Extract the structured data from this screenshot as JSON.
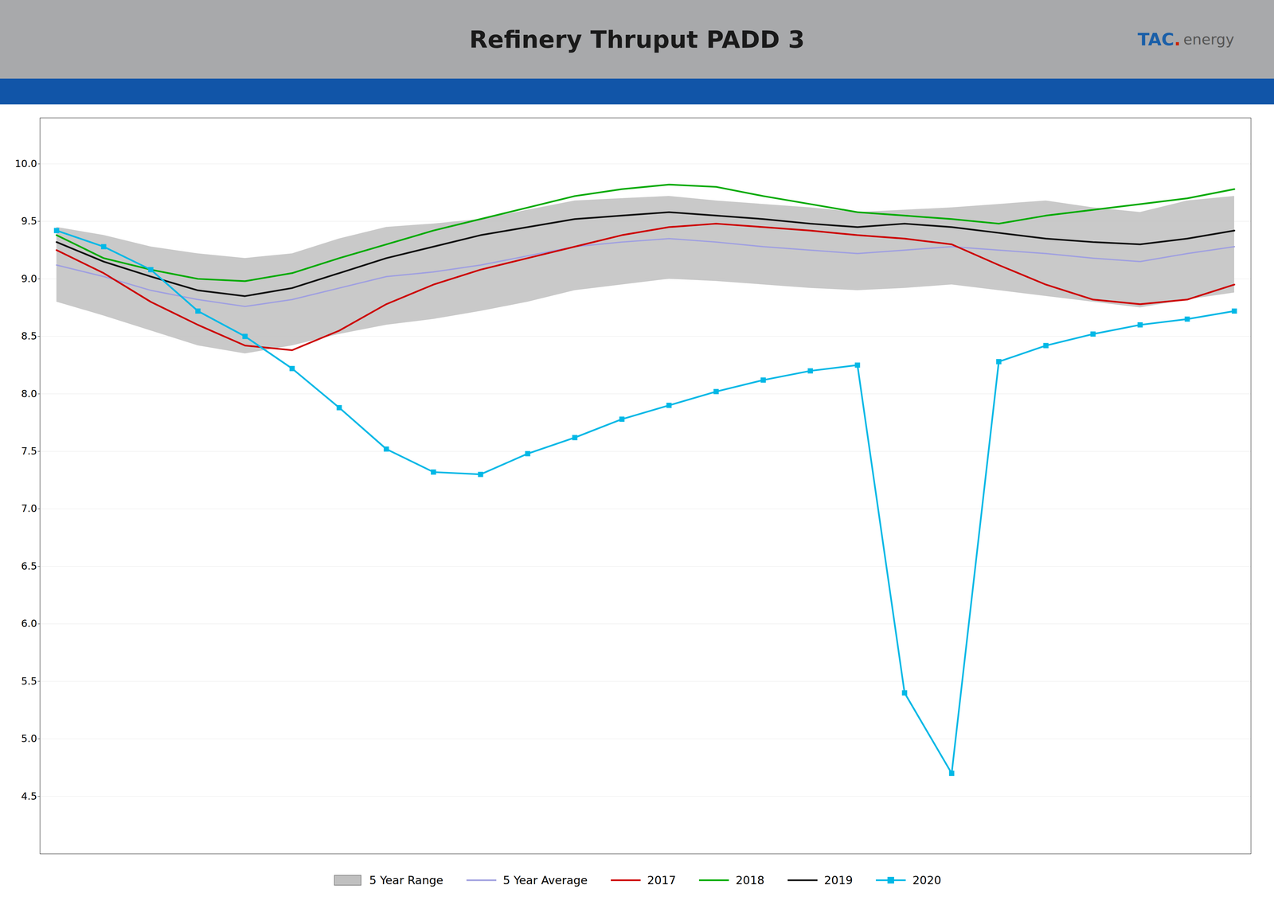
{
  "chart_data": {
    "type": "line",
    "title": "Refinery Thruput PADD 3",
    "annotations": [
      "TAC",
      ".",
      "energy"
    ],
    "categories": [
      null,
      null,
      null,
      null,
      null,
      null,
      null,
      null,
      null,
      null,
      null,
      null,
      null,
      null,
      null,
      null,
      null,
      null,
      null,
      null,
      null,
      null,
      null,
      null,
      null,
      null
    ],
    "series": [
      {
        "name": "5 Year Range",
        "type": "range",
        "color": "#c0c0c0",
        "low": [
          8.8,
          8.68,
          8.55,
          8.42,
          8.35,
          8.42,
          8.52,
          8.6,
          8.65,
          8.72,
          8.8,
          8.9,
          8.95,
          9.0,
          8.98,
          8.95,
          8.92,
          8.9,
          8.92,
          8.95,
          8.9,
          8.85,
          8.8,
          8.75,
          8.82,
          8.88
        ],
        "high": [
          9.45,
          9.38,
          9.28,
          9.22,
          9.18,
          9.22,
          9.35,
          9.45,
          9.48,
          9.52,
          9.6,
          9.68,
          9.7,
          9.72,
          9.68,
          9.65,
          9.62,
          9.58,
          9.6,
          9.62,
          9.65,
          9.68,
          9.62,
          9.58,
          9.68,
          9.72
        ]
      },
      {
        "name": "5 Year Average",
        "type": "line",
        "color": "#a0a0e0",
        "values": [
          9.12,
          9.02,
          8.9,
          8.82,
          8.76,
          8.82,
          8.92,
          9.02,
          9.06,
          9.12,
          9.2,
          9.28,
          9.32,
          9.35,
          9.32,
          9.28,
          9.25,
          9.22,
          9.25,
          9.28,
          9.25,
          9.22,
          9.18,
          9.15,
          9.22,
          9.28
        ]
      },
      {
        "name": "2017",
        "type": "line",
        "color": "#cc0000",
        "values": [
          9.25,
          9.05,
          8.8,
          8.6,
          8.42,
          8.38,
          8.55,
          8.78,
          8.95,
          9.08,
          9.18,
          9.28,
          9.38,
          9.45,
          9.48,
          9.45,
          9.42,
          9.38,
          9.35,
          9.3,
          9.12,
          8.95,
          8.82,
          8.78,
          8.82,
          8.95
        ]
      },
      {
        "name": "2018",
        "type": "line",
        "color": "#00aa00",
        "values": [
          9.38,
          9.18,
          9.08,
          9.0,
          8.98,
          9.05,
          9.18,
          9.3,
          9.42,
          9.52,
          9.62,
          9.72,
          9.78,
          9.82,
          9.8,
          9.72,
          9.65,
          9.58,
          9.55,
          9.52,
          9.48,
          9.55,
          9.6,
          9.65,
          9.7,
          9.78
        ]
      },
      {
        "name": "2019",
        "type": "line",
        "color": "#111111",
        "values": [
          9.32,
          9.15,
          9.02,
          8.9,
          8.85,
          8.92,
          9.05,
          9.18,
          9.28,
          9.38,
          9.45,
          9.52,
          9.55,
          9.58,
          9.55,
          9.52,
          9.48,
          9.45,
          9.48,
          9.45,
          9.4,
          9.35,
          9.32,
          9.3,
          9.35,
          9.42
        ]
      },
      {
        "name": "2020",
        "type": "line",
        "color": "#00b8e6",
        "marker": "square",
        "values": [
          9.42,
          9.28,
          9.08,
          8.72,
          8.5,
          8.22,
          7.88,
          7.52,
          7.32,
          7.3,
          7.48,
          7.62,
          7.78,
          7.9,
          8.02,
          8.12,
          8.2,
          8.25,
          5.4,
          4.7,
          8.28,
          8.42,
          8.52,
          8.6,
          8.65,
          8.72
        ]
      }
    ],
    "ylim": [
      4.0,
      10.4
    ],
    "yticks": [
      4.5,
      {
        "value": 5,
        "label": "5.0"
      },
      5.5,
      {
        "value": 6,
        "label": "6.0"
      },
      6.5,
      {
        "value": 7,
        "label": "7.0"
      },
      7.5,
      {
        "value": 8,
        "label": "8.0"
      },
      8.5,
      {
        "value": 9,
        "label": "9.0"
      },
      9.5,
      {
        "value": 10,
        "label": "10.0"
      }
    ],
    "grid": true,
    "legend": "lower center",
    "tick_labels": "y"
  }
}
